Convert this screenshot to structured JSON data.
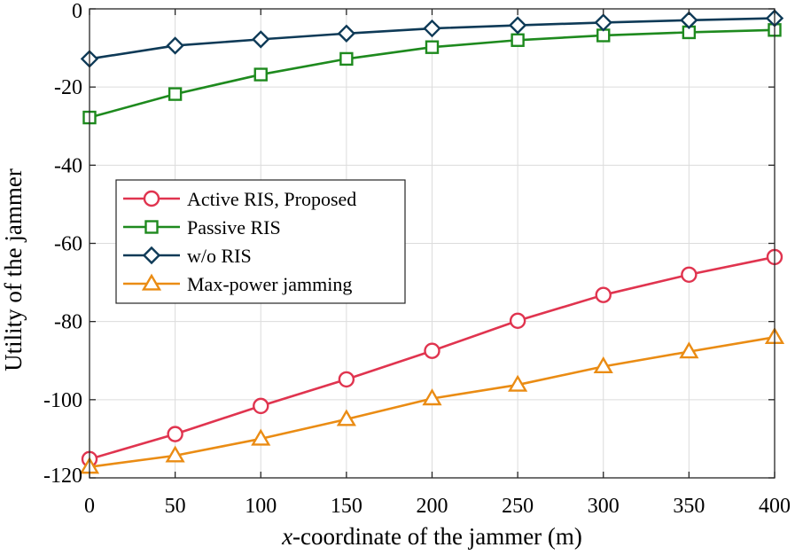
{
  "chart_data": {
    "type": "line",
    "xlabel_prefix": "x",
    "xlabel_rest": "-coordinate of the jammer (m)",
    "ylabel": "Utility of the jammer",
    "xlim": [
      0,
      400
    ],
    "ylim": [
      -120,
      0
    ],
    "xticks": [
      "0",
      "50",
      "100",
      "150",
      "200",
      "250",
      "300",
      "350",
      "400"
    ],
    "yticks": [
      "0",
      "-20",
      "-40",
      "-60",
      "-80",
      "-100",
      "-120"
    ],
    "grid": true,
    "legend_position": "middle-left",
    "x": [
      0,
      50,
      100,
      150,
      200,
      250,
      300,
      350,
      400
    ],
    "series": [
      {
        "name": "Active RIS, Proposed",
        "color": "#e0344f",
        "marker": "circle",
        "values": [
          -115.2,
          -108.8,
          -101.6,
          -94.8,
          -87.5,
          -79.8,
          -73.2,
          -68.0,
          -63.5
        ]
      },
      {
        "name": "Passive RIS",
        "color": "#1e8a1e",
        "marker": "square",
        "values": [
          -27.8,
          -21.8,
          -16.8,
          -12.8,
          -9.8,
          -8.0,
          -6.8,
          -6.0,
          -5.4
        ]
      },
      {
        "name": "w/o RIS",
        "color": "#0e3a57",
        "marker": "diamond",
        "values": [
          -12.8,
          -9.4,
          -7.8,
          -6.3,
          -5.0,
          -4.2,
          -3.5,
          -2.9,
          -2.4
        ]
      },
      {
        "name": "Max-power jamming",
        "color": "#ea8c14",
        "marker": "triangle",
        "values": [
          -117.2,
          -114.3,
          -110.0,
          -105.0,
          -99.7,
          -96.2,
          -91.5,
          -87.7,
          -84.0
        ]
      }
    ]
  }
}
